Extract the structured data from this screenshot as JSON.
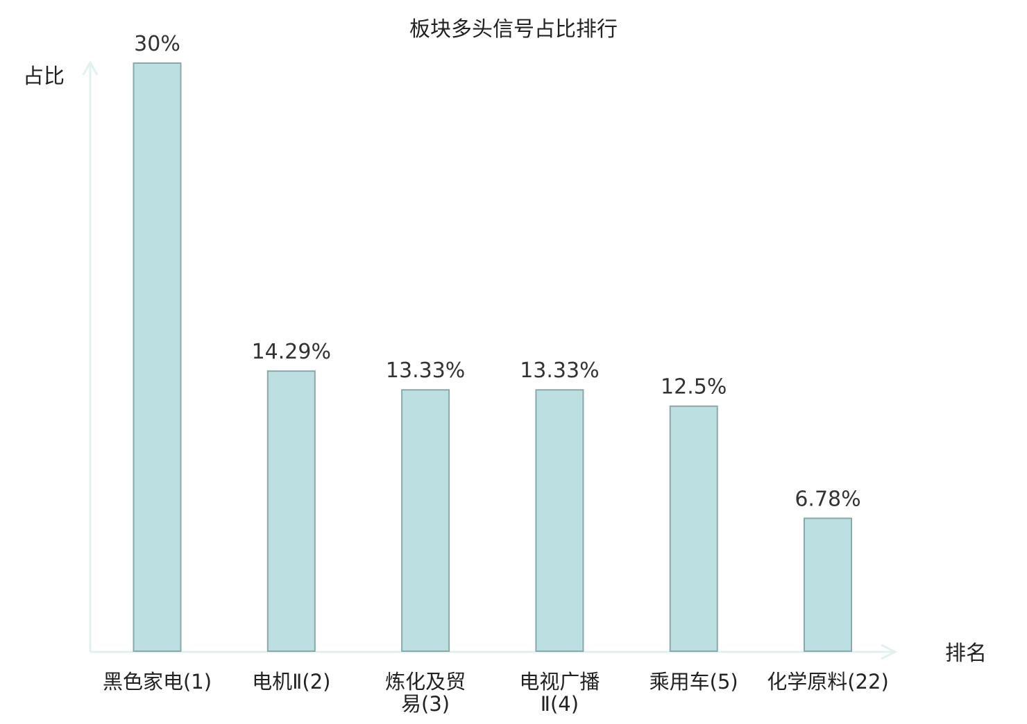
{
  "chart_data": {
    "type": "bar",
    "title": "板块多头信号占比排行",
    "ylabel": "占比",
    "xlabel": "排名",
    "categories": [
      [
        "黑色家电(1)"
      ],
      [
        "电机Ⅱ(2)"
      ],
      [
        "炼化及贸",
        "易(3)"
      ],
      [
        "电视广播",
        "Ⅱ(4)"
      ],
      [
        "乘用车(5)"
      ],
      [
        "化学原料(22)"
      ]
    ],
    "values": [
      30,
      14.29,
      13.33,
      13.33,
      12.5,
      6.78
    ],
    "value_labels": [
      "30%",
      "14.29%",
      "13.33%",
      "13.33%",
      "12.5%",
      "6.78%"
    ],
    "highlight_index": 5,
    "ylim": [
      0,
      30
    ],
    "grid": false,
    "colors": {
      "bar_fill": "#bce0e2",
      "bar_stroke": "#8aa8aa",
      "axis": "#e0f2ef",
      "highlight_text": "#dd1111",
      "text": "#222222"
    }
  }
}
